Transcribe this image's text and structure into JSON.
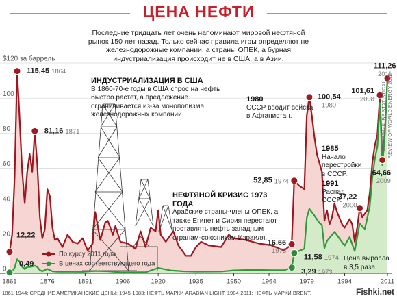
{
  "chart_data": {
    "type": "line",
    "title": "ЦЕНА НЕФТИ",
    "subtitle": "Последние тридцать лет очень напоминают мировой нефтяной рынок 150 лет назад. Только сейчас правила игры определяют не железнодорожные компании, а страны ОПЕК, а бурная индустриализация происходит не в США, а в Азии.",
    "series": [
      {
        "name": "По курсу 2011 года",
        "color": "#a3151e",
        "fill": "#f6d6d2",
        "x": [
          1861,
          1862,
          1863,
          1864,
          1865,
          1866,
          1867,
          1868,
          1869,
          1870,
          1871,
          1872,
          1873,
          1874,
          1875,
          1876,
          1877,
          1878,
          1879,
          1880,
          1882,
          1884,
          1886,
          1888,
          1890,
          1892,
          1894,
          1895,
          1897,
          1899,
          1900,
          1902,
          1903,
          1905,
          1908,
          1911,
          1913,
          1915,
          1917,
          1919,
          1920,
          1921,
          1923,
          1926,
          1928,
          1931,
          1933,
          1935,
          1937,
          1940,
          1945,
          1948,
          1950,
          1955,
          1960,
          1965,
          1970,
          1973,
          1974,
          1976,
          1978,
          1979,
          1980,
          1981,
          1982,
          1983,
          1984,
          1985,
          1986,
          1987,
          1988,
          1989,
          1990,
          1991,
          1993,
          1994,
          1996,
          1997,
          1998,
          1999,
          2000,
          2001,
          2003,
          2004,
          2005,
          2006,
          2007,
          2008,
          2009,
          2010,
          2011
        ],
        "values": [
          12.22,
          22,
          55,
          115.45,
          88,
          58,
          40,
          58,
          68,
          58,
          81.16,
          62,
          32,
          20,
          25,
          48,
          44,
          26,
          19,
          20,
          15,
          22,
          18,
          17,
          20,
          13,
          17,
          35,
          19,
          29,
          30,
          22,
          27,
          18,
          17,
          14,
          24,
          15,
          26,
          24,
          36,
          22,
          18,
          24,
          16,
          10,
          10,
          15,
          18,
          16,
          15,
          22,
          20,
          19,
          17,
          16,
          13,
          16.66,
          52.85,
          50,
          48,
          90,
          100.54,
          90,
          78,
          68,
          63,
          58,
          30,
          36,
          28,
          32,
          40,
          35,
          28,
          26,
          31,
          28,
          18,
          26,
          37.22,
          32,
          36,
          46,
          63,
          73,
          79,
          101.61,
          64.66,
          81,
          111.26
        ],
        "value_labels": [
          "12,22",
          null,
          null,
          "115,45",
          null,
          null,
          null,
          null,
          null,
          null,
          "81,16",
          null,
          null,
          null,
          null,
          null,
          null,
          null,
          null,
          null,
          null,
          null,
          null,
          null,
          null,
          null,
          null,
          null,
          null,
          null,
          null,
          null,
          null,
          null,
          null,
          null,
          null,
          null,
          null,
          null,
          null,
          null,
          null,
          null,
          null,
          null,
          null,
          null,
          null,
          null,
          null,
          null,
          null,
          null,
          null,
          null,
          null,
          "16,66",
          "52,85",
          null,
          null,
          null,
          "100,54",
          null,
          null,
          null,
          null,
          null,
          null,
          null,
          null,
          null,
          null,
          null,
          null,
          null,
          null,
          null,
          null,
          null,
          "37,22",
          null,
          null,
          null,
          null,
          null,
          null,
          "101,61",
          "64,66",
          null,
          "111,26"
        ]
      },
      {
        "name": "В ценах соответствующего года",
        "color": "#2e9a3a",
        "fill": "#d3ebc9",
        "x": [
          1861,
          1862,
          1863,
          1864,
          1865,
          1866,
          1867,
          1868,
          1869,
          1870,
          1871,
          1872,
          1873,
          1874,
          1876,
          1878,
          1880,
          1885,
          1890,
          1895,
          1900,
          1905,
          1910,
          1915,
          1920,
          1925,
          1930,
          1935,
          1940,
          1945,
          1950,
          1955,
          1960,
          1965,
          1970,
          1973,
          1974,
          1978,
          1979,
          1980,
          1982,
          1984,
          1985,
          1986,
          1987,
          1990,
          1994,
          1996,
          1998,
          2000,
          2002,
          2004,
          2005,
          2006,
          2007,
          2008,
          2009,
          2010,
          2011
        ],
        "values": [
          0.49,
          1.05,
          3.15,
          8.06,
          6.59,
          3.74,
          2.41,
          3.63,
          3.64,
          3.86,
          4.34,
          3.64,
          1.83,
          1.17,
          2.56,
          1.19,
          0.95,
          0.88,
          0.87,
          1.36,
          1.19,
          0.62,
          0.61,
          0.64,
          3.07,
          1.68,
          1.19,
          0.97,
          1.02,
          1.05,
          1.71,
          1.93,
          1.9,
          1.8,
          1.8,
          3.29,
          11.58,
          14.02,
          31.61,
          36.83,
          32.97,
          28.78,
          27.56,
          14.43,
          18.44,
          23.73,
          15.82,
          20.67,
          12.72,
          28.5,
          25.02,
          38.27,
          54.52,
          65.14,
          72.39,
          97.26,
          61.67,
          79.5,
          111.26
        ],
        "value_labels": [
          "0,49",
          null,
          null,
          null,
          null,
          null,
          null,
          null,
          null,
          null,
          null,
          null,
          null,
          null,
          null,
          null,
          null,
          null,
          null,
          null,
          null,
          null,
          null,
          null,
          null,
          null,
          null,
          null,
          null,
          null,
          null,
          null,
          null,
          null,
          null,
          "3,29",
          "11,58",
          null,
          null,
          null,
          null,
          null,
          null,
          null,
          null,
          null,
          null,
          null,
          null,
          null,
          null,
          null,
          null,
          null,
          null,
          null,
          null,
          null,
          null
        ]
      }
    ],
    "xlim": [
      1861,
      2011
    ],
    "ylim": [
      0,
      120
    ],
    "xticks": [
      1861,
      1876,
      1891,
      1906,
      1920,
      1935,
      1950,
      1964,
      1979,
      1994,
      2011
    ],
    "yticks": [
      0,
      20,
      40,
      60,
      80,
      100,
      {
        "value": 120,
        "label": "$120 за баррель"
      }
    ],
    "grid": true,
    "annotations": [
      {
        "heading": "ИНДУСТРИАЛИЗАЦИЯ В США",
        "text": "В 1860-70-е годы в США спрос на нефть быстро растет, а предложение ограничивается из-за монополизма железнодорожных компаний."
      },
      {
        "heading": "НЕФТЯНОЙ КРИЗИС 1973 ГОДА",
        "text": "Арабские страны-члены ОПЕК, а также Египет и Сирия перестают поставлять нефть западным странам-союзникам Израиля."
      },
      {
        "heading": "1980",
        "text": "СССР вводит войска в Афганистан."
      },
      {
        "heading": "1985",
        "text": "Начало перестройки в СССР."
      },
      {
        "heading": "1991",
        "text": "Распад СССР."
      },
      {
        "text": "Цена выросла в 3,5 раза."
      }
    ],
    "source": "ИСТОЧНИК: BP STATISTICAL REVIEW OF WORLD ENERGY 2012",
    "footnote": "1861-1944: СРЕДНИЕ АМЕРИКАНСКИЕ ЦЕНЫ; 1945-1983: НЕФТЬ МАРКИ ARABIAN LIGHT; 1984-2011: НЕФТЬ МАРКИ BRENT.",
    "watermark": "Fishki.net"
  }
}
